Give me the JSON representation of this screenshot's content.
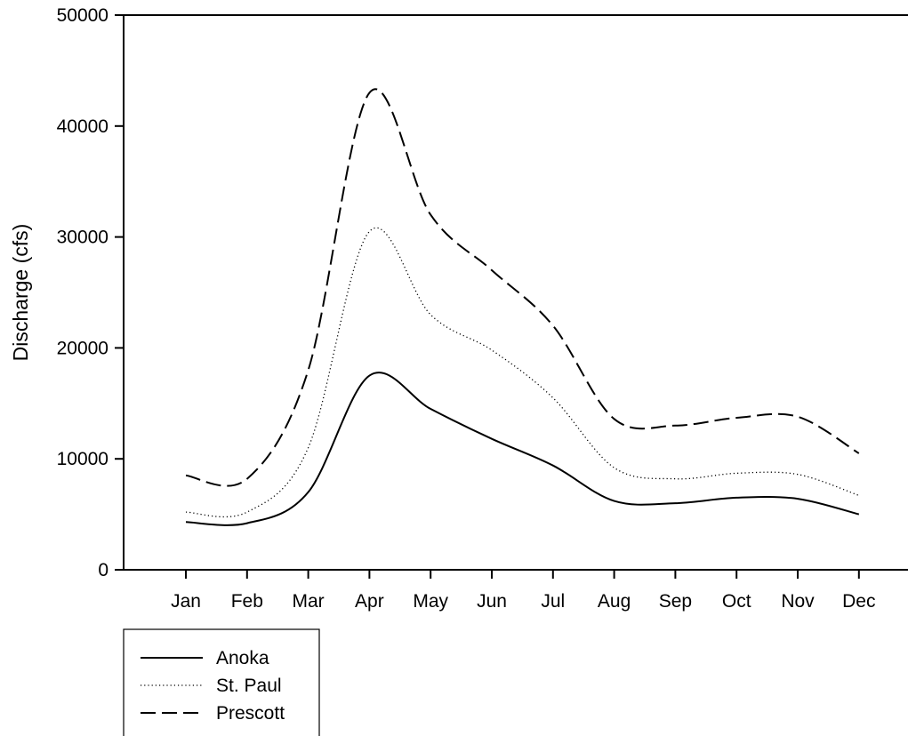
{
  "chart_data": {
    "type": "line",
    "title": "",
    "xlabel": "",
    "ylabel": "Discharge (cfs)",
    "categories": [
      "Jan",
      "Feb",
      "Mar",
      "Apr",
      "May",
      "Jun",
      "Jul",
      "Aug",
      "Sep",
      "Oct",
      "Nov",
      "Dec"
    ],
    "ylim": [
      0,
      50000
    ],
    "yticks": [
      0,
      10000,
      20000,
      30000,
      40000,
      50000
    ],
    "ytick_labels": [
      "0",
      "10000",
      "20000",
      "30000",
      "40000",
      "50000"
    ],
    "legend_position": "below-left",
    "grid": false,
    "series": [
      {
        "name": "Anoka",
        "style": "solid",
        "color": "#000000",
        "values": [
          4300,
          4200,
          7000,
          17500,
          14500,
          11800,
          9400,
          6200,
          6000,
          6500,
          6400,
          5000
        ]
      },
      {
        "name": "St. Paul",
        "style": "dotted",
        "color": "#000000",
        "values": [
          5200,
          5200,
          11000,
          30500,
          23000,
          19800,
          15500,
          9200,
          8200,
          8700,
          8600,
          6700
        ]
      },
      {
        "name": "Prescott",
        "style": "dashed",
        "color": "#000000",
        "values": [
          8500,
          8200,
          18000,
          43000,
          32000,
          27000,
          22000,
          13600,
          13000,
          13700,
          13800,
          10500
        ]
      }
    ]
  }
}
